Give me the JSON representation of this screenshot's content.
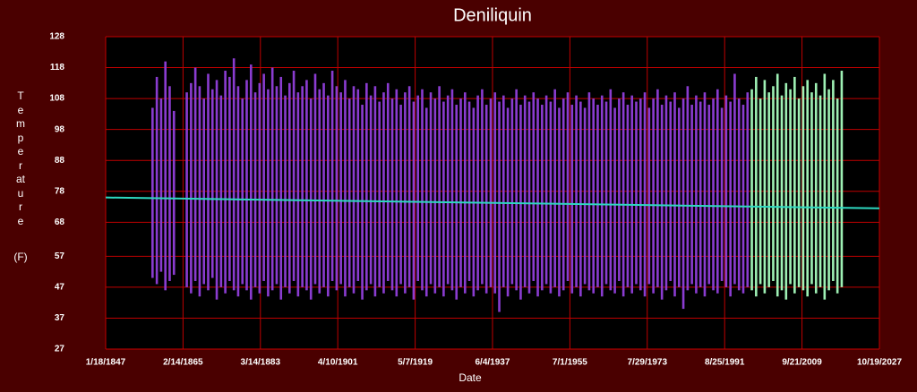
{
  "chart_data": {
    "type": "range",
    "title": "Deniliquin",
    "x_label": "Date",
    "y_label": "Temperature",
    "y_unit": "(F)",
    "xlim": [
      1847.05,
      2027.8
    ],
    "xticks": [
      {
        "value": 1847.05,
        "label": "1/18/1847"
      },
      {
        "value": 1865.12,
        "label": "2/14/1865"
      },
      {
        "value": 1883.2,
        "label": "3/14/1883"
      },
      {
        "value": 1901.27,
        "label": "4/10/1901"
      },
      {
        "value": 1919.35,
        "label": "5/7/1919"
      },
      {
        "value": 1937.42,
        "label": "6/4/1937"
      },
      {
        "value": 1955.5,
        "label": "7/1/1955"
      },
      {
        "value": 1973.57,
        "label": "7/29/1973"
      },
      {
        "value": 1991.65,
        "label": "8/25/1991"
      },
      {
        "value": 2009.72,
        "label": "9/21/2009"
      },
      {
        "value": 2027.8,
        "label": "10/19/2027"
      }
    ],
    "ylim": [
      27,
      128
    ],
    "yticks": [
      27,
      37,
      47,
      57,
      68,
      78,
      88,
      98,
      108,
      118,
      128
    ],
    "grid": true,
    "series": [
      {
        "color": "#8a3cd0",
        "x": [
          1858,
          1859,
          1860,
          1861,
          1862,
          1863,
          1866,
          1867,
          1868,
          1869,
          1870,
          1871,
          1872,
          1873,
          1874,
          1875,
          1876,
          1877,
          1878,
          1879,
          1880,
          1881,
          1882,
          1883,
          1884,
          1885,
          1886,
          1887,
          1888,
          1889,
          1890,
          1891,
          1892,
          1893,
          1894,
          1895,
          1896,
          1897,
          1898,
          1899,
          1900,
          1901,
          1902,
          1903,
          1904,
          1905,
          1906,
          1907,
          1908,
          1909,
          1910,
          1911,
          1912,
          1913,
          1914,
          1915,
          1916,
          1917,
          1918,
          1919,
          1920,
          1921,
          1922,
          1923,
          1924,
          1925,
          1926,
          1927,
          1928,
          1929,
          1930,
          1931,
          1932,
          1933,
          1934,
          1935,
          1936,
          1937,
          1938,
          1939,
          1940,
          1941,
          1942,
          1943,
          1944,
          1945,
          1946,
          1947,
          1948,
          1949,
          1950,
          1951,
          1952,
          1953,
          1954,
          1955,
          1956,
          1957,
          1958,
          1959,
          1960,
          1961,
          1962,
          1963,
          1964,
          1965,
          1966,
          1967,
          1968,
          1969,
          1970,
          1971,
          1972,
          1973,
          1974,
          1975,
          1976,
          1977,
          1978,
          1979,
          1980,
          1981,
          1982,
          1983,
          1984,
          1985,
          1986,
          1987,
          1988,
          1989,
          1990,
          1991,
          1992,
          1993,
          1994,
          1995,
          1996,
          1997
        ],
        "high": [
          105,
          115,
          108,
          120,
          112,
          104,
          110,
          113,
          118,
          112,
          108,
          116,
          111,
          114,
          109,
          117,
          115,
          121,
          112,
          108,
          114,
          119,
          110,
          113,
          116,
          111,
          118,
          112,
          115,
          109,
          113,
          117,
          110,
          112,
          114,
          108,
          116,
          111,
          113,
          109,
          117,
          112,
          110,
          114,
          108,
          112,
          111,
          106,
          113,
          109,
          112,
          107,
          110,
          113,
          108,
          111,
          106,
          110,
          112,
          107,
          109,
          111,
          105,
          110,
          108,
          112,
          107,
          109,
          111,
          106,
          108,
          110,
          107,
          105,
          109,
          111,
          106,
          108,
          110,
          107,
          109,
          105,
          108,
          111,
          106,
          109,
          107,
          110,
          108,
          106,
          109,
          107,
          111,
          105,
          108,
          110,
          106,
          109,
          107,
          105,
          110,
          108,
          106,
          109,
          107,
          111,
          105,
          108,
          110,
          106,
          109,
          107,
          108,
          110,
          105,
          108,
          111,
          106,
          109,
          107,
          110,
          105,
          108,
          112,
          106,
          109,
          107,
          110,
          106,
          108,
          111,
          105,
          109,
          107,
          116,
          108,
          106,
          110
        ],
        "low": [
          50,
          48,
          52,
          46,
          49,
          51,
          47,
          45,
          49,
          44,
          48,
          46,
          50,
          43,
          47,
          45,
          49,
          46,
          44,
          48,
          46,
          43,
          47,
          45,
          49,
          44,
          46,
          48,
          43,
          47,
          45,
          49,
          44,
          47,
          46,
          43,
          48,
          45,
          47,
          44,
          49,
          46,
          48,
          44,
          47,
          45,
          49,
          43,
          46,
          48,
          44,
          47,
          45,
          49,
          46,
          44,
          48,
          45,
          47,
          43,
          49,
          46,
          44,
          48,
          45,
          47,
          44,
          48,
          46,
          43,
          47,
          45,
          49,
          44,
          46,
          48,
          45,
          47,
          45,
          39,
          47,
          44,
          48,
          46,
          43,
          47,
          45,
          49,
          44,
          46,
          48,
          45,
          47,
          44,
          46,
          49,
          45,
          47,
          44,
          48,
          46,
          45,
          47,
          44,
          48,
          46,
          45,
          49,
          44,
          47,
          45,
          48,
          46,
          44,
          48,
          45,
          47,
          43,
          46,
          49,
          44,
          47,
          40,
          46,
          48,
          45,
          47,
          44,
          48,
          46,
          45,
          49,
          47,
          44,
          48,
          46,
          45,
          47
        ]
      },
      {
        "color": "#9ef0b4",
        "x": [
          1998,
          1999,
          2000,
          2001,
          2002,
          2003,
          2004,
          2005,
          2006,
          2007,
          2008,
          2009,
          2010,
          2011,
          2012,
          2013,
          2014,
          2015,
          2016,
          2017,
          2018,
          2019
        ],
        "high": [
          111,
          115,
          108,
          114,
          110,
          112,
          116,
          109,
          113,
          111,
          115,
          108,
          112,
          114,
          110,
          113,
          109,
          116,
          111,
          114,
          108,
          117
        ],
        "low": [
          46,
          44,
          48,
          45,
          47,
          49,
          44,
          46,
          43,
          48,
          45,
          47,
          46,
          44,
          48,
          45,
          47,
          43,
          46,
          49,
          45,
          47
        ]
      }
    ],
    "trend": {
      "color": "#2ed8c0",
      "x": [
        1847.05,
        2027.8
      ],
      "values": [
        76,
        72.5
      ]
    }
  }
}
